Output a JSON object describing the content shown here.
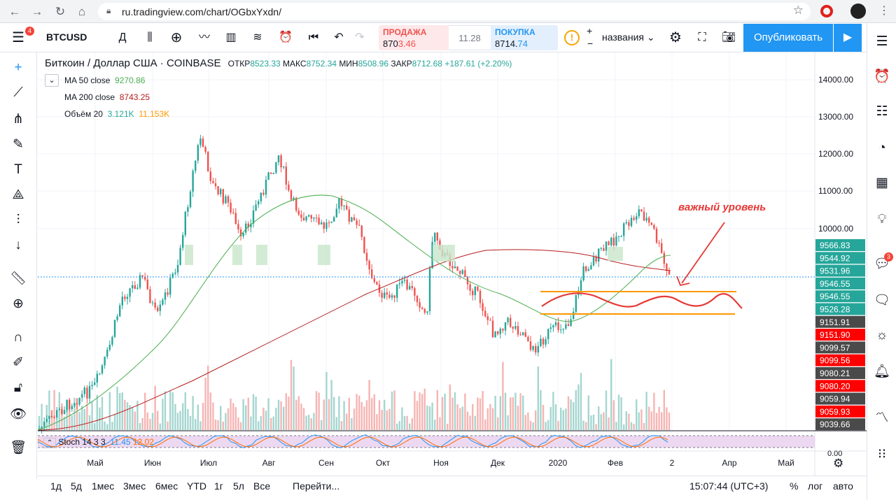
{
  "browser": {
    "url": "ru.tradingview.com/chart/OGbxYxdn/"
  },
  "toolbar": {
    "menu_badge": "4",
    "symbol": "BTCUSD",
    "interval": "Д",
    "sell_label": "ПРОДАЖА",
    "sell_price_main": "870",
    "sell_price_tail": "3.46",
    "spread": "11.28",
    "buy_label": "ПОКУПКА",
    "buy_price_main": "8714.",
    "buy_price_tail": "74",
    "name_dropdown": "названия",
    "publish_label": "Опубликовать"
  },
  "legend": {
    "title": "Биткоин / Доллар США · COINBASE",
    "open_label": "ОТКР",
    "open": "8523.33",
    "high_label": "МАКС",
    "high": "8752.34",
    "low_label": "МИН",
    "low": "8508.96",
    "close_label": "ЗАКР",
    "close": "8712.68",
    "change": "+187.61 (+2.20%)",
    "ma50_label": "MA 50 close",
    "ma50_value": "9270.86",
    "ma200_label": "MA 200 close",
    "ma200_value": "8743.25",
    "vol_label": "Объём 20",
    "vol_value1": "3.121K",
    "vol_value2": "11.153K"
  },
  "annotation": "важный уровень",
  "stoch": {
    "label": "Stoch 14 3 3",
    "k": "11.45",
    "d": "12.02"
  },
  "right_badge": "3",
  "bottombar": {
    "ranges": [
      "1д",
      "5д",
      "1мес",
      "3мес",
      "6мес",
      "YTD",
      "1г",
      "5л",
      "Все"
    ],
    "goto": "Перейти...",
    "time": "15:07:44 (UTC+3)",
    "percent": "%",
    "log": "лог",
    "auto": "авто"
  },
  "chart_data": {
    "type": "candlestick",
    "x_ticks": [
      "Май",
      "Июн",
      "Июл",
      "Авг",
      "Сен",
      "Окт",
      "Ноя",
      "Дек",
      "2020",
      "Фев",
      "2",
      "Апр",
      "Май"
    ],
    "y_ticks": [
      "14000.00",
      "13000.00",
      "12000.00",
      "11000.00",
      "10000.00"
    ],
    "price_labels": [
      {
        "text": "9566.83",
        "color": "#26a69a"
      },
      {
        "text": "9544.92",
        "color": "#26a69a"
      },
      {
        "text": "9531.96",
        "color": "#26a69a"
      },
      {
        "text": "9546.55",
        "color": "#26a69a"
      },
      {
        "text": "9546.55",
        "color": "#26a69a"
      },
      {
        "text": "9526.28",
        "color": "#26a69a"
      },
      {
        "text": "9151.91",
        "color": "#4a4a4a"
      },
      {
        "text": "9151.90",
        "color": "#ff0000"
      },
      {
        "text": "9099.57",
        "color": "#4a4a4a"
      },
      {
        "text": "9099.56",
        "color": "#ff0000"
      },
      {
        "text": "9080.21",
        "color": "#4a4a4a"
      },
      {
        "text": "9080.20",
        "color": "#ff0000"
      },
      {
        "text": "9059.94",
        "color": "#4a4a4a"
      },
      {
        "text": "9059.93",
        "color": "#ff0000"
      },
      {
        "text": "9039.66",
        "color": "#4a4a4a"
      }
    ],
    "stoch_tick": "0.00",
    "colors": {
      "up": "#26a69a",
      "down": "#ef5350",
      "ma50": "#4caf50",
      "ma200": "#b71c1c",
      "levels": "#ff9800",
      "annotation": "#e53935"
    }
  }
}
